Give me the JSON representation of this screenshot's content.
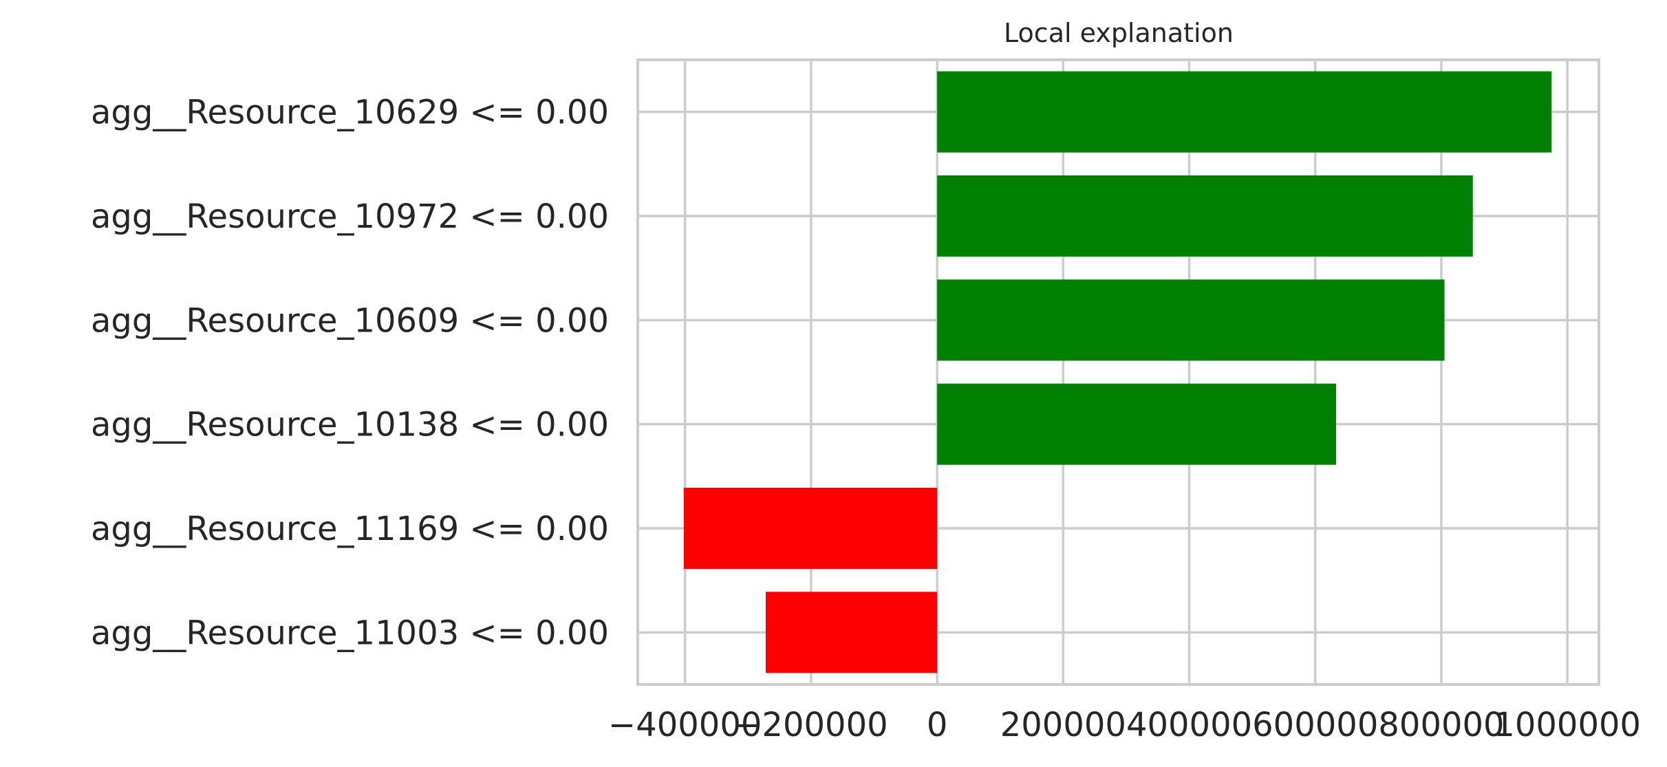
{
  "chart_data": {
    "type": "bar",
    "orientation": "horizontal",
    "title": "Local explanation",
    "xlabel": "",
    "ylabel": "",
    "categories": [
      "agg__Resource_10629 <= 0.00",
      "agg__Resource_10972 <= 0.00",
      "agg__Resource_10609 <= 0.00",
      "agg__Resource_10138 <= 0.00",
      "agg__Resource_11169 <= 0.00",
      "agg__Resource_11003 <= 0.00"
    ],
    "values": [
      975000,
      850000,
      805000,
      633000,
      -402000,
      -272000
    ],
    "xlim": [
      -475000,
      1050000
    ],
    "xticks": [
      -400000,
      -200000,
      0,
      200000,
      400000,
      600000,
      800000,
      1000000
    ],
    "xtick_labels": [
      "−400000",
      "−200000",
      "0",
      "200000",
      "400000",
      "600000",
      "800000",
      "1000000"
    ],
    "grid": true,
    "colors": {
      "positive": "#008000",
      "negative": "#ff0000",
      "grid": "#cccccc",
      "text": "#262626"
    }
  }
}
